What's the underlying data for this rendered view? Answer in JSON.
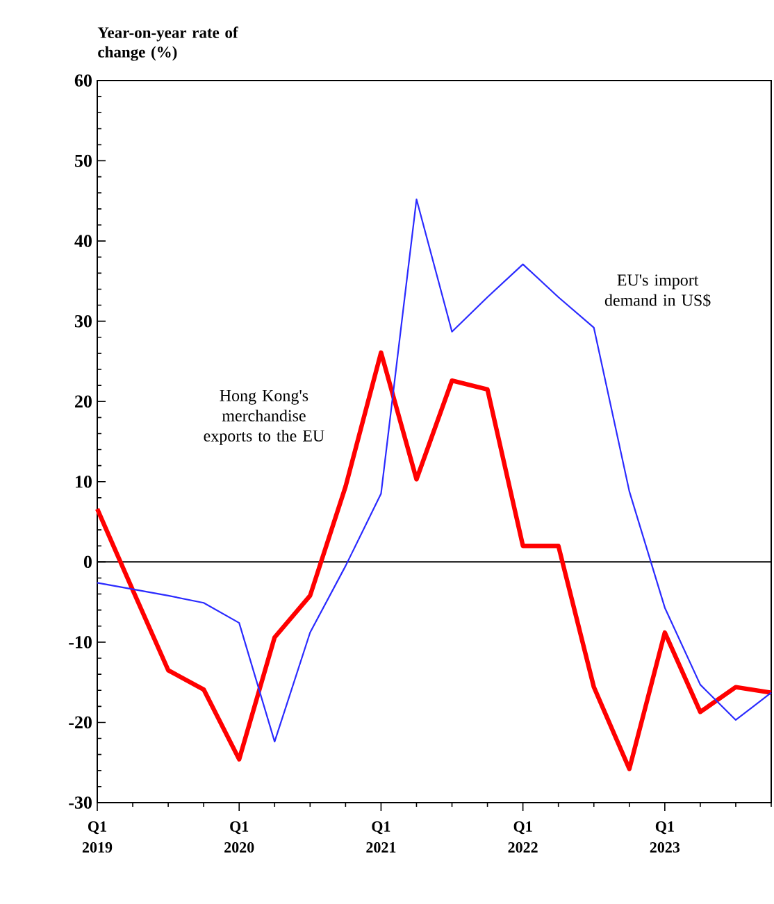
{
  "chart_data": {
    "type": "line",
    "ylabel": "Year-on-year rate of change (%)",
    "categories": [
      "Q1 2019",
      null,
      null,
      null,
      "Q1 2020",
      null,
      null,
      null,
      "Q1 2021",
      null,
      null,
      null,
      "Q1 2022",
      null,
      null,
      null,
      "Q1 2023",
      null,
      null,
      null
    ],
    "series": [
      {
        "name": "Hong Kong's merchandise exports to the EU",
        "color": "#ff0000",
        "values": [
          6.6,
          -3.5,
          -13.5,
          -15.9,
          -24.6,
          -9.4,
          -4.2,
          9.4,
          26.1,
          10.3,
          22.6,
          21.5,
          2.0,
          2.0,
          -15.6,
          -25.8,
          -8.8,
          -18.7,
          -15.6,
          -16.3
        ]
      },
      {
        "name": "EU's import demand in US$",
        "color": "#2a2aff",
        "values": [
          -2.6,
          -3.4,
          -4.2,
          -5.1,
          -7.6,
          -22.4,
          -8.8,
          -0.5,
          8.5,
          45.2,
          28.7,
          33.0,
          37.1,
          33.0,
          29.2,
          8.8,
          -5.7,
          -15.3,
          -19.7,
          -16.3
        ]
      }
    ],
    "ylim": [
      -30,
      60
    ],
    "yticks": [
      -30,
      -20,
      -10,
      0,
      10,
      20,
      30,
      40,
      50,
      60
    ],
    "ref_lines": [
      {
        "axis": "y",
        "value": 0,
        "color": "#000000"
      }
    ],
    "grid": false,
    "legend": false,
    "marker": "none",
    "line_style": "solid"
  }
}
